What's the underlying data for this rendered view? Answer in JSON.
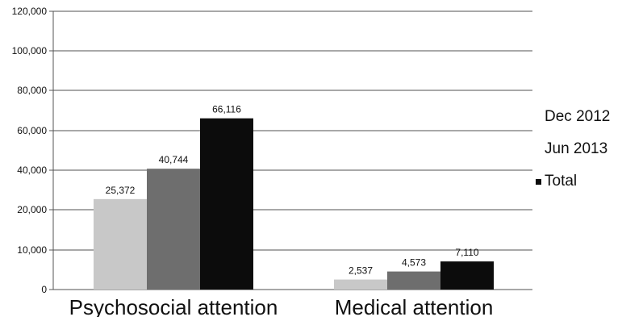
{
  "chart_data": {
    "type": "bar",
    "categories": [
      "Psychosocial attention",
      "Medical attention"
    ],
    "series": [
      {
        "name": "Dec 2012",
        "color": "#c8c8c8",
        "values": [
          25372,
          2537
        ],
        "labels": [
          "25,372",
          "2,537"
        ]
      },
      {
        "name": "Jun 2013",
        "color": "#6e6e6e",
        "values": [
          40744,
          4573
        ],
        "labels": [
          "40,744",
          "4,573"
        ]
      },
      {
        "name": "Total",
        "color": "#0c0c0c",
        "values": [
          66116,
          7110
        ],
        "labels": [
          "66,116",
          "7,110"
        ]
      }
    ],
    "y_ticks": [
      0,
      10000,
      20000,
      40000,
      60000,
      80000,
      100000,
      120000
    ],
    "y_tick_labels": [
      "0",
      "10,000",
      "20,000",
      "40,000",
      "60,000",
      "80,000",
      "100,000",
      "120,000"
    ],
    "ylim": [
      0,
      120000
    ],
    "grid": true,
    "legend_position": "right"
  }
}
